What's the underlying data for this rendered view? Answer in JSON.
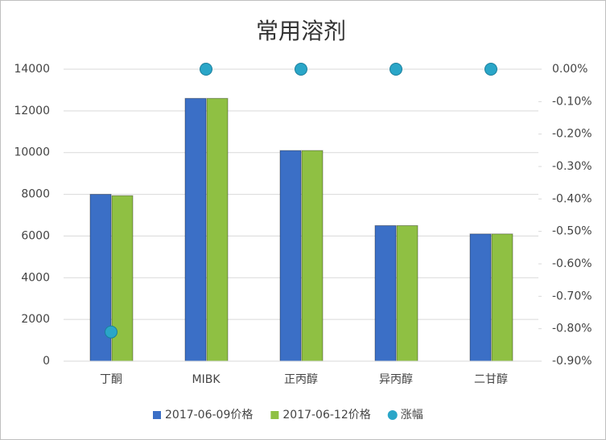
{
  "chart_data": {
    "type": "bar",
    "title": "常用溶剂",
    "categories": [
      "丁酮",
      "MIBK",
      "正丙醇",
      "异丙醇",
      "二甘醇"
    ],
    "series": [
      {
        "name": "2017-06-09价格",
        "color": "#3b6fc6",
        "values": [
          8000,
          12600,
          10100,
          6500,
          6100
        ]
      },
      {
        "name": "2017-06-12价格",
        "color": "#8fc043",
        "values": [
          7935,
          12600,
          10100,
          6500,
          6100
        ]
      },
      {
        "name": "涨幅",
        "color": "#2aa6c8",
        "type": "scatter",
        "axis": "y2",
        "values": [
          -0.81,
          0,
          0,
          0,
          0
        ]
      }
    ],
    "ylim": [
      0,
      14000
    ],
    "yticks": [
      0,
      2000,
      4000,
      6000,
      8000,
      10000,
      12000,
      14000
    ],
    "y2lim": [
      -0.9,
      0
    ],
    "y2ticks": [
      {
        "value": 0,
        "label": "0.00%"
      },
      {
        "value": -0.1,
        "label": "-0.10%"
      },
      {
        "value": -0.2,
        "label": "-0.20%"
      },
      {
        "value": -0.3,
        "label": "-0.30%"
      },
      {
        "value": -0.4,
        "label": "-0.40%"
      },
      {
        "value": -0.5,
        "label": "-0.50%"
      },
      {
        "value": -0.6,
        "label": "-0.60%"
      },
      {
        "value": -0.7,
        "label": "-0.70%"
      },
      {
        "value": -0.8,
        "label": "-0.80%"
      },
      {
        "value": -0.9,
        "label": "-0.90%"
      }
    ],
    "grid": true,
    "legend": "bottom"
  }
}
